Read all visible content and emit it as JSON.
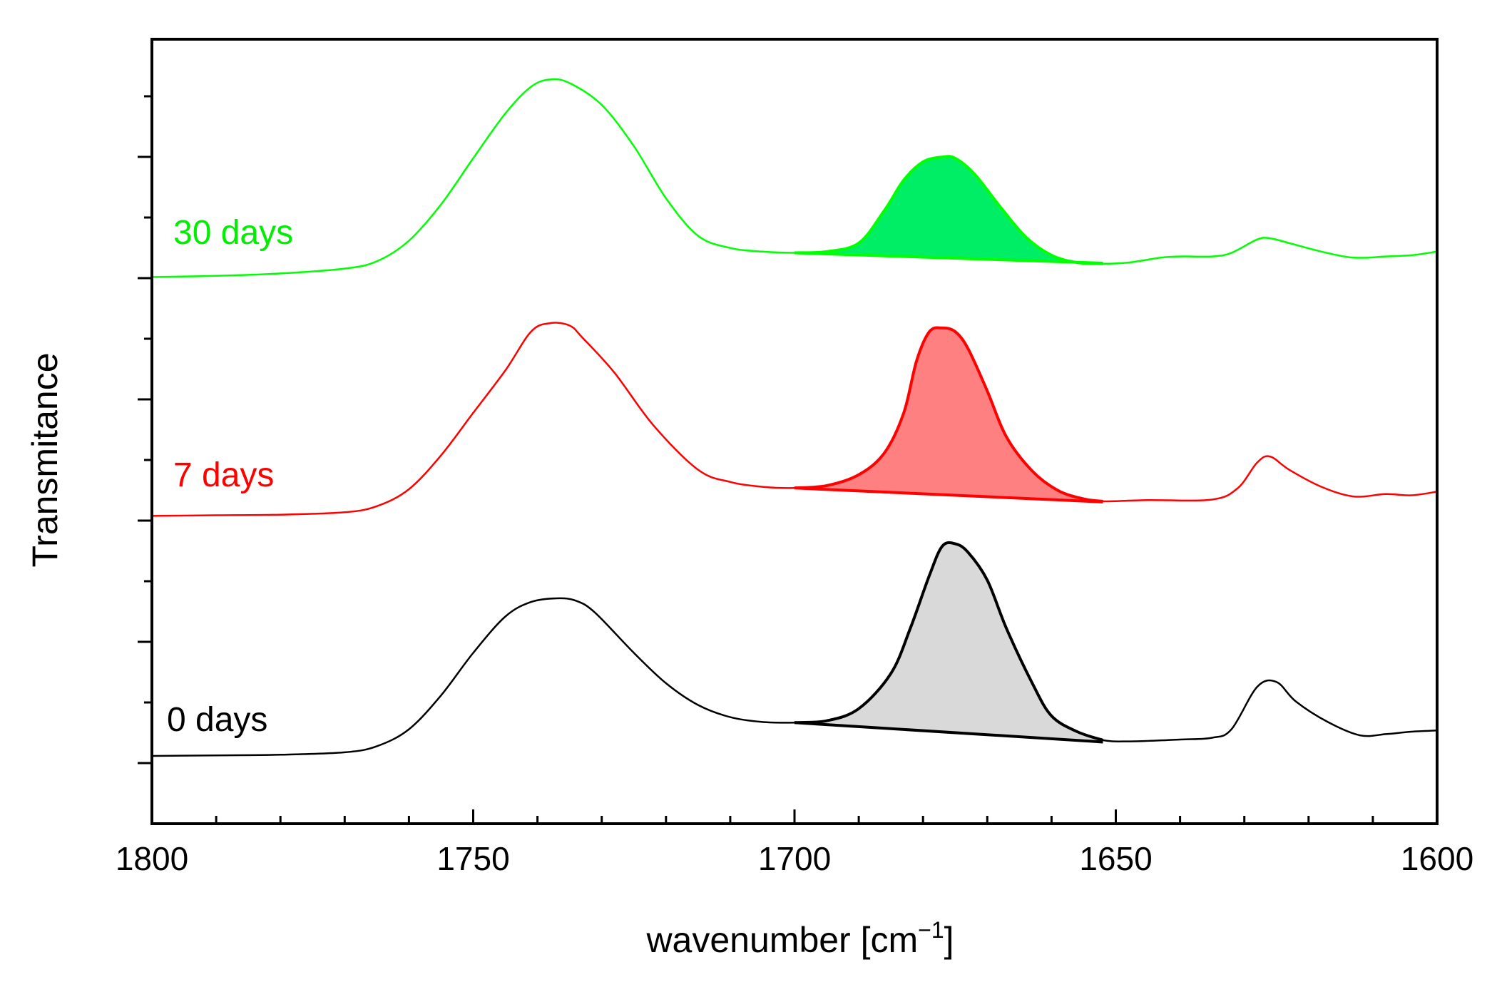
{
  "chart_data": {
    "type": "line",
    "title": "",
    "xlabel": "wavenumber [cm",
    "xlabel_superscript": "−1",
    "xlabel_suffix": "]",
    "ylabel": "Transmitance",
    "xlim": [
      1800,
      1600
    ],
    "x_ticks": [
      1800,
      1750,
      1700,
      1650,
      1600
    ],
    "x_minor_step": 10,
    "y_axis_numbered": false,
    "y_minor_tick_count": 13,
    "series": [
      {
        "name": "0 days",
        "color": "#000000",
        "fill_color": "#d9d9d9",
        "offset": 0,
        "fill_range": [
          1700,
          1652
        ],
        "baseline_height": 1.15,
        "points": [
          [
            1800,
            0.0
          ],
          [
            1790,
            0.05
          ],
          [
            1780,
            0.1
          ],
          [
            1770,
            0.3
          ],
          [
            1765,
            0.8
          ],
          [
            1760,
            2.2
          ],
          [
            1755,
            5.0
          ],
          [
            1750,
            8.5
          ],
          [
            1745,
            11.5
          ],
          [
            1741,
            12.7
          ],
          [
            1737,
            13.0
          ],
          [
            1734,
            12.8
          ],
          [
            1731,
            11.8
          ],
          [
            1725,
            8.5
          ],
          [
            1720,
            6.0
          ],
          [
            1715,
            4.2
          ],
          [
            1710,
            3.2
          ],
          [
            1705,
            2.8
          ],
          [
            1700,
            2.75
          ],
          [
            1695,
            2.9
          ],
          [
            1690,
            3.9
          ],
          [
            1685,
            6.8
          ],
          [
            1682,
            10.5
          ],
          [
            1679,
            14.9
          ],
          [
            1677,
            17.3
          ],
          [
            1675,
            17.5
          ],
          [
            1673,
            16.8
          ],
          [
            1670,
            14.5
          ],
          [
            1667,
            10.5
          ],
          [
            1663,
            6.0
          ],
          [
            1660,
            3.3
          ],
          [
            1656,
            2.0
          ],
          [
            1652,
            1.3
          ],
          [
            1648,
            1.2
          ],
          [
            1640,
            1.35
          ],
          [
            1635,
            1.5
          ],
          [
            1632,
            2.2
          ],
          [
            1628,
            5.7
          ],
          [
            1625,
            6.1
          ],
          [
            1622,
            4.5
          ],
          [
            1617,
            2.8
          ],
          [
            1612,
            1.7
          ],
          [
            1608,
            1.8
          ],
          [
            1604,
            2.0
          ],
          [
            1600,
            2.1
          ]
        ]
      },
      {
        "name": "7 days",
        "color": "#ff0000",
        "fill_color": "#ff8080",
        "offset": 19.8,
        "fill_range": [
          1700,
          1652
        ],
        "baseline_height": 1.15,
        "points": [
          [
            1800,
            0.0
          ],
          [
            1790,
            0.05
          ],
          [
            1780,
            0.1
          ],
          [
            1770,
            0.3
          ],
          [
            1765,
            0.8
          ],
          [
            1760,
            2.2
          ],
          [
            1755,
            5.0
          ],
          [
            1750,
            8.5
          ],
          [
            1745,
            12.0
          ],
          [
            1741,
            15.2
          ],
          [
            1738,
            15.9
          ],
          [
            1735,
            15.7
          ],
          [
            1733,
            14.7
          ],
          [
            1728,
            11.8
          ],
          [
            1722,
            7.5
          ],
          [
            1715,
            3.8
          ],
          [
            1710,
            2.8
          ],
          [
            1705,
            2.4
          ],
          [
            1700,
            2.3
          ],
          [
            1695,
            2.5
          ],
          [
            1690,
            3.4
          ],
          [
            1686,
            5.2
          ],
          [
            1683,
            8.5
          ],
          [
            1681,
            12.8
          ],
          [
            1679,
            15.2
          ],
          [
            1677,
            15.5
          ],
          [
            1675,
            15.2
          ],
          [
            1673,
            13.8
          ],
          [
            1670,
            10.3
          ],
          [
            1667,
            6.5
          ],
          [
            1663,
            3.7
          ],
          [
            1659,
            2.1
          ],
          [
            1655,
            1.4
          ],
          [
            1652,
            1.2
          ],
          [
            1645,
            1.3
          ],
          [
            1635,
            1.35
          ],
          [
            1631,
            2.3
          ],
          [
            1628,
            4.4
          ],
          [
            1626,
            4.9
          ],
          [
            1623,
            3.8
          ],
          [
            1618,
            2.4
          ],
          [
            1613,
            1.6
          ],
          [
            1608,
            1.8
          ],
          [
            1604,
            1.7
          ],
          [
            1600,
            2.0
          ]
        ]
      },
      {
        "name": "30 days",
        "color": "#00ff00",
        "fill_color": "#00ee66",
        "offset": 39.5,
        "fill_range": [
          1700,
          1652
        ],
        "baseline_height": 1.15,
        "points": [
          [
            1800,
            0.0
          ],
          [
            1790,
            0.1
          ],
          [
            1780,
            0.3
          ],
          [
            1770,
            0.7
          ],
          [
            1765,
            1.3
          ],
          [
            1760,
            3.0
          ],
          [
            1755,
            6.0
          ],
          [
            1750,
            9.8
          ],
          [
            1745,
            13.5
          ],
          [
            1741,
            15.7
          ],
          [
            1738,
            16.3
          ],
          [
            1735,
            16.0
          ],
          [
            1730,
            14.2
          ],
          [
            1725,
            10.8
          ],
          [
            1720,
            6.5
          ],
          [
            1715,
            3.4
          ],
          [
            1710,
            2.4
          ],
          [
            1705,
            2.1
          ],
          [
            1700,
            2.0
          ],
          [
            1695,
            2.1
          ],
          [
            1690,
            2.8
          ],
          [
            1686,
            5.5
          ],
          [
            1683,
            8.0
          ],
          [
            1680,
            9.5
          ],
          [
            1677,
            9.9
          ],
          [
            1675,
            9.8
          ],
          [
            1672,
            8.5
          ],
          [
            1668,
            5.8
          ],
          [
            1664,
            3.3
          ],
          [
            1660,
            1.8
          ],
          [
            1656,
            1.2
          ],
          [
            1652,
            1.1
          ],
          [
            1648,
            1.2
          ],
          [
            1643,
            1.6
          ],
          [
            1640,
            1.7
          ],
          [
            1635,
            1.7
          ],
          [
            1632,
            2.0
          ],
          [
            1628,
            3.1
          ],
          [
            1626,
            3.2
          ],
          [
            1623,
            2.8
          ],
          [
            1618,
            2.1
          ],
          [
            1613,
            1.6
          ],
          [
            1608,
            1.7
          ],
          [
            1604,
            1.8
          ],
          [
            1600,
            2.1
          ]
        ]
      }
    ]
  }
}
